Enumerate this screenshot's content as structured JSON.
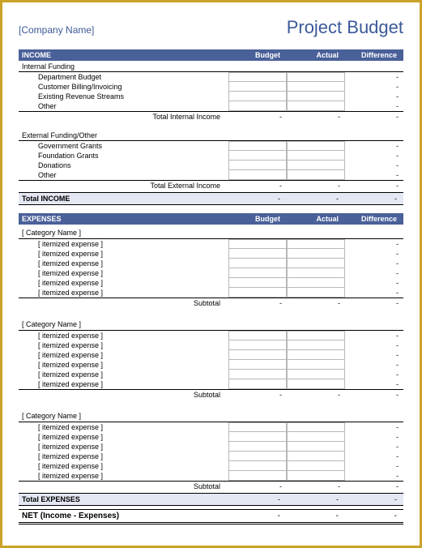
{
  "header": {
    "company": "[Company Name]",
    "title": "Project Budget"
  },
  "columns": {
    "budget": "Budget",
    "actual": "Actual",
    "difference": "Difference"
  },
  "income": {
    "label": "INCOME",
    "internal": {
      "label": "Internal Funding",
      "items": [
        "Department Budget",
        "Customer Billing/Invoicing",
        "Existing Revenue Streams",
        "Other"
      ],
      "subtotal_label": "Total Internal Income"
    },
    "external": {
      "label": "External Funding/Other",
      "items": [
        "Government Grants",
        "Foundation Grants",
        "Donations",
        "Other"
      ],
      "subtotal_label": "Total External Income"
    },
    "total_label": "Total INCOME"
  },
  "expenses": {
    "label": "EXPENSES",
    "category_placeholder": "[ Category Name ]",
    "item_placeholder": "[ itemized expense ]",
    "items_per_category": 6,
    "category_count": 3,
    "subtotal_label": "Subtotal",
    "total_label": "Total EXPENSES"
  },
  "net": {
    "label": "NET (Income - Expenses)"
  },
  "dash": "-",
  "colors": {
    "border": "#c9a227",
    "header_bg": "#4a6099",
    "accent_text": "#3b5998",
    "total_bg": "#e4e8f2",
    "cell_border": "#b8b8b8"
  }
}
